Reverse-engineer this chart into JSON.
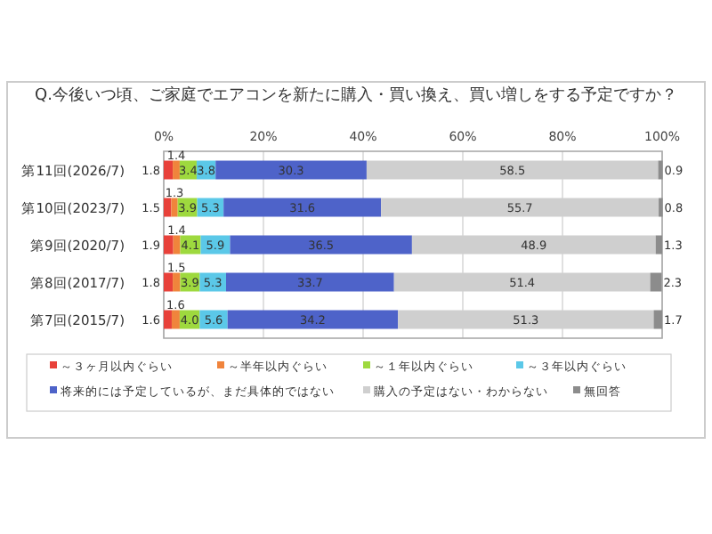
{
  "chart_data": {
    "type": "bar",
    "orientation": "horizontal",
    "stacked": true,
    "title": "Q.今後いつ頃、ご家庭でエアコンを新たに購入・買い換え、買い増しをする予定ですか？",
    "categories": [
      "第11回(2026/7)",
      "第10回(2023/7)",
      "第9回(2020/7)",
      "第8回(2017/7)",
      "第7回(2015/7)"
    ],
    "series": [
      {
        "name": "～３ヶ月以内ぐらい",
        "color": "#e8413a",
        "values": [
          1.8,
          1.5,
          1.9,
          1.8,
          1.6
        ],
        "value_labels": [
          "1.8",
          "1.5",
          "1.9",
          "1.8",
          "1.6"
        ]
      },
      {
        "name": "～半年以内ぐらい",
        "color": "#f0843c",
        "values": [
          1.4,
          1.3,
          1.4,
          1.5,
          1.6
        ],
        "value_labels": [
          "1.4",
          "1.3",
          "1.4",
          "1.5",
          "1.6"
        ]
      },
      {
        "name": "～１年以内ぐらい",
        "color": "#9ed93e",
        "values": [
          3.4,
          3.9,
          4.1,
          3.9,
          4.0
        ],
        "value_labels": [
          "3.4",
          "3.9",
          "4.1",
          "3.9",
          "4.0"
        ]
      },
      {
        "name": "～３年以内ぐらい",
        "color": "#5bc8e8",
        "values": [
          3.8,
          5.3,
          5.9,
          5.3,
          5.6
        ],
        "value_labels": [
          "3.8",
          "5.3",
          "5.9",
          "5.3",
          "5.6"
        ]
      },
      {
        "name": "将来的には予定しているが、まだ具体的ではない",
        "color": "#4e63c9",
        "values": [
          30.3,
          31.6,
          36.5,
          33.7,
          34.2
        ],
        "value_labels": [
          "30.3",
          "31.6",
          "36.5",
          "33.7",
          "34.2"
        ]
      },
      {
        "name": "購入の予定はない・わからない",
        "color": "#cfcfcf",
        "values": [
          58.5,
          55.7,
          48.9,
          51.4,
          51.3
        ],
        "value_labels": [
          "58.5",
          "55.7",
          "48.9",
          "51.4",
          "51.3"
        ]
      },
      {
        "name": "無回答",
        "color": "#8c8c8c",
        "values": [
          0.9,
          0.8,
          1.3,
          2.3,
          1.7
        ],
        "value_labels": [
          "0.9",
          "0.8",
          "1.3",
          "2.3",
          "1.7"
        ]
      }
    ],
    "xlim": [
      0,
      100
    ],
    "xticks": [
      {
        "value": 0,
        "label": "0%"
      },
      {
        "value": 20,
        "label": "20%"
      },
      {
        "value": 40,
        "label": "40%"
      },
      {
        "value": 60,
        "label": "60%"
      },
      {
        "value": 80,
        "label": "80%"
      },
      {
        "value": 100,
        "label": "100%"
      }
    ],
    "grid": "x",
    "legend": "bottom"
  }
}
